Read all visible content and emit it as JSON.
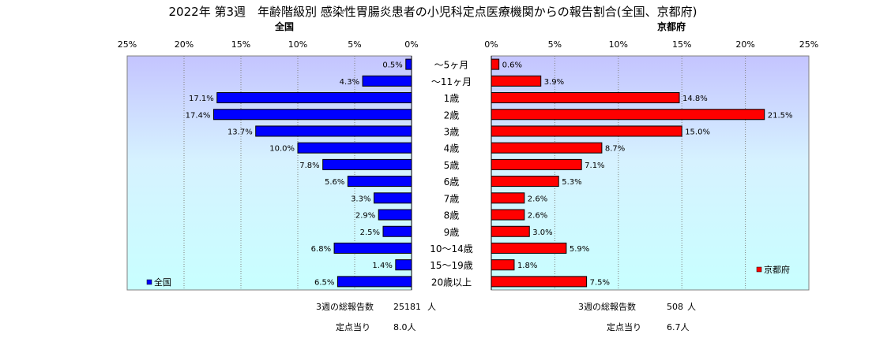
{
  "chart_data": {
    "type": "bar",
    "title": "2022年 第3週　年齢階級別 感染性胃腸炎患者の小児科定点医療機関からの報告割合(全国、京都府)",
    "categories": [
      "～5ヶ月",
      "～11ヶ月",
      "1歳",
      "2歳",
      "3歳",
      "4歳",
      "5歳",
      "6歳",
      "7歳",
      "8歳",
      "9歳",
      "10～14歳",
      "15～19歳",
      "20歳以上"
    ],
    "xlim": [
      0,
      25
    ],
    "tick_labels": [
      "0%",
      "5%",
      "10%",
      "15%",
      "20%",
      "25%"
    ],
    "grid": true,
    "series": [
      {
        "name": "全国",
        "panel_title": "全国",
        "color": "#0000ff",
        "values": [
          0.5,
          4.3,
          17.1,
          17.4,
          13.7,
          10.0,
          7.8,
          5.6,
          3.3,
          2.9,
          2.5,
          6.8,
          1.4,
          6.5
        ],
        "value_labels": [
          "0.5%",
          "4.3%",
          "17.1%",
          "17.4%",
          "13.7%",
          "10.0%",
          "7.8%",
          "5.6%",
          "3.3%",
          "2.9%",
          "2.5%",
          "6.8%",
          "1.4%",
          "6.5%"
        ],
        "legend": "全国",
        "legend_position": "bottom-left",
        "total_label": "3週の総報告数",
        "total_value": "25181",
        "total_unit": "人",
        "per_point_label": "定点当り",
        "per_point_value": "8.0人"
      },
      {
        "name": "京都府",
        "panel_title": "京都府",
        "color": "#ff0000",
        "values": [
          0.6,
          3.9,
          14.8,
          21.5,
          15.0,
          8.7,
          7.1,
          5.3,
          2.6,
          2.6,
          3.0,
          5.9,
          1.8,
          7.5
        ],
        "value_labels": [
          "0.6%",
          "3.9%",
          "14.8%",
          "21.5%",
          "15.0%",
          "8.7%",
          "7.1%",
          "5.3%",
          "2.6%",
          "2.6%",
          "3.0%",
          "5.9%",
          "1.8%",
          "7.5%"
        ],
        "legend": "京都府",
        "legend_position": "bottom-right",
        "total_label": "3週の総報告数",
        "total_value": "508",
        "total_unit": "人",
        "per_point_label": "定点当り",
        "per_point_value": "6.7人"
      }
    ]
  }
}
